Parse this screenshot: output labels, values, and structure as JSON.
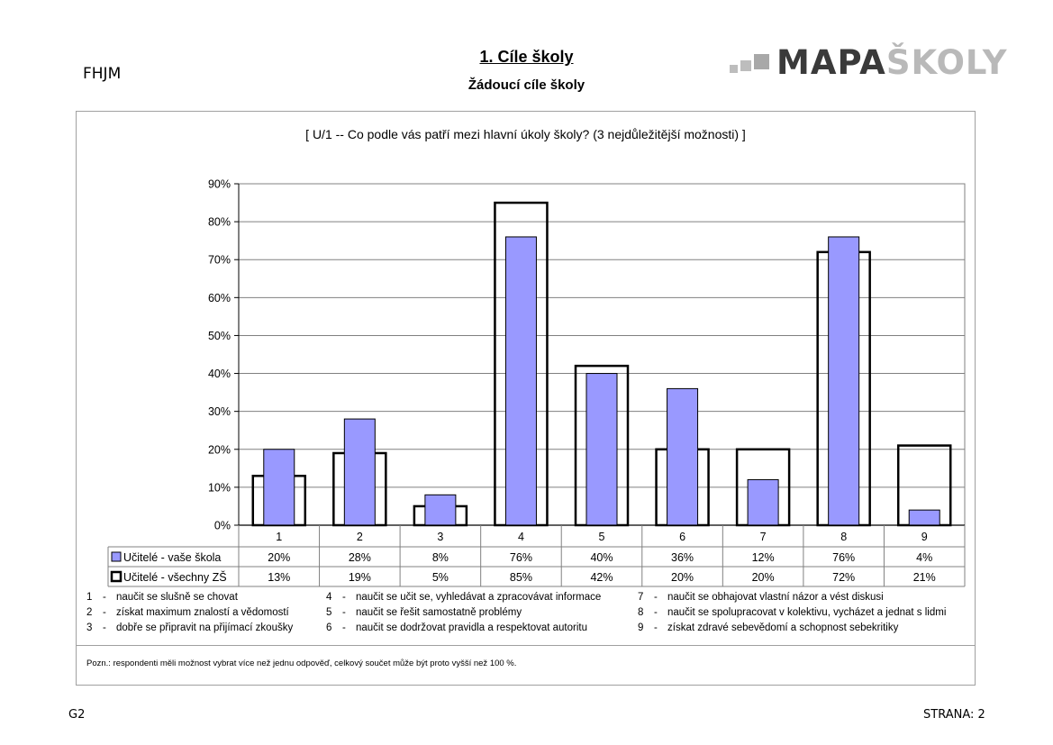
{
  "header": {
    "school_code": "FHJM",
    "title": "1. Cíle školy",
    "subtitle": "Žádoucí cíle školy",
    "logo_text_dark": "MAPA",
    "logo_text_light": "ŠKOLY"
  },
  "chart_data": {
    "type": "bar",
    "title": "[ U/1 -- Co podle vás patří mezi hlavní úkoly školy? (3 nejdůležitější možnosti) ]",
    "categories": [
      "1",
      "2",
      "3",
      "4",
      "5",
      "6",
      "7",
      "8",
      "9"
    ],
    "series": [
      {
        "name": "Učitelé - vaše škola",
        "values": [
          20,
          28,
          8,
          76,
          40,
          36,
          12,
          76,
          4
        ],
        "labels": [
          "20%",
          "28%",
          "8%",
          "76%",
          "40%",
          "36%",
          "12%",
          "76%",
          "4%"
        ],
        "color": "#9999ff",
        "style": "filled"
      },
      {
        "name": "Učitelé - všechny ZŠ",
        "values": [
          13,
          19,
          5,
          85,
          42,
          20,
          20,
          72,
          21
        ],
        "labels": [
          "13%",
          "19%",
          "5%",
          "85%",
          "42%",
          "20%",
          "20%",
          "72%",
          "21%"
        ],
        "color": "#000000",
        "style": "outline"
      }
    ],
    "yticks": [
      "0%",
      "10%",
      "20%",
      "30%",
      "40%",
      "50%",
      "60%",
      "70%",
      "80%",
      "90%"
    ],
    "ylim": [
      0,
      90
    ],
    "grid": true,
    "legend": "data-table"
  },
  "legend_notes": [
    {
      "num": "1",
      "text": "naučit se slušně se chovat"
    },
    {
      "num": "2",
      "text": "získat maximum znalostí a vědomostí"
    },
    {
      "num": "3",
      "text": "dobře se připravit na přijímací zkoušky"
    },
    {
      "num": "4",
      "text": "naučit se učit se, vyhledávat a zpracovávat informace"
    },
    {
      "num": "5",
      "text": "naučit se řešit samostatně problémy"
    },
    {
      "num": "6",
      "text": "naučit se dodržovat pravidla a respektovat autoritu"
    },
    {
      "num": "7",
      "text": "naučit se obhajovat vlastní názor a vést diskusi"
    },
    {
      "num": "8",
      "text": "naučit se spolupracovat v kolektivu, vycházet a jednat s lidmi"
    },
    {
      "num": "9",
      "text": "získat zdravé sebevědomí a schopnost sebekritiky"
    }
  ],
  "note_dash": "-",
  "footnote": "Pozn.: respondenti měli možnost vybrat více než jednu odpověď, celkový součet může být proto vyšší než 100 %.",
  "footer": {
    "left": "G2",
    "right": "STRANA: 2"
  }
}
